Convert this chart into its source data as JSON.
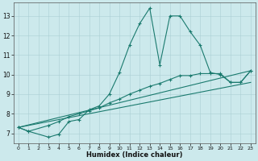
{
  "xlabel": "Humidex (Indice chaleur)",
  "bg_color": "#cce9ec",
  "line_color": "#1a7a6e",
  "grid_color": "#aacfd4",
  "xlim": [
    -0.5,
    23.5
  ],
  "ylim": [
    6.5,
    13.7
  ],
  "xticks": [
    0,
    1,
    2,
    3,
    4,
    5,
    6,
    7,
    8,
    9,
    10,
    11,
    12,
    13,
    14,
    15,
    16,
    17,
    18,
    19,
    20,
    21,
    22,
    23
  ],
  "yticks": [
    7,
    8,
    9,
    10,
    11,
    12,
    13
  ],
  "lines": [
    {
      "x": [
        0,
        1,
        3,
        4,
        5,
        6,
        7,
        8,
        9,
        10,
        11,
        12,
        13,
        14,
        15,
        16,
        17,
        18,
        19,
        20,
        21,
        22,
        23
      ],
      "y": [
        7.3,
        7.1,
        6.8,
        6.95,
        7.6,
        7.7,
        8.2,
        8.4,
        9.0,
        10.1,
        11.5,
        12.6,
        13.4,
        10.5,
        13.0,
        13.0,
        12.2,
        11.5,
        10.1,
        10.0,
        9.6,
        9.6,
        10.2
      ],
      "marker": "+"
    },
    {
      "x": [
        0,
        1,
        3,
        4,
        5,
        6,
        7,
        8,
        9,
        10,
        11,
        12,
        13,
        14,
        15,
        16,
        17,
        18,
        19,
        20,
        21,
        22,
        23
      ],
      "y": [
        7.3,
        7.1,
        7.4,
        7.6,
        7.85,
        8.0,
        8.15,
        8.3,
        8.55,
        8.75,
        9.0,
        9.2,
        9.4,
        9.55,
        9.75,
        9.95,
        9.95,
        10.05,
        10.05,
        10.05,
        9.6,
        9.6,
        10.2
      ],
      "marker": "+"
    },
    {
      "x": [
        0,
        23
      ],
      "y": [
        7.3,
        10.2
      ],
      "marker": null
    },
    {
      "x": [
        0,
        23
      ],
      "y": [
        7.3,
        9.6
      ],
      "marker": null
    }
  ]
}
